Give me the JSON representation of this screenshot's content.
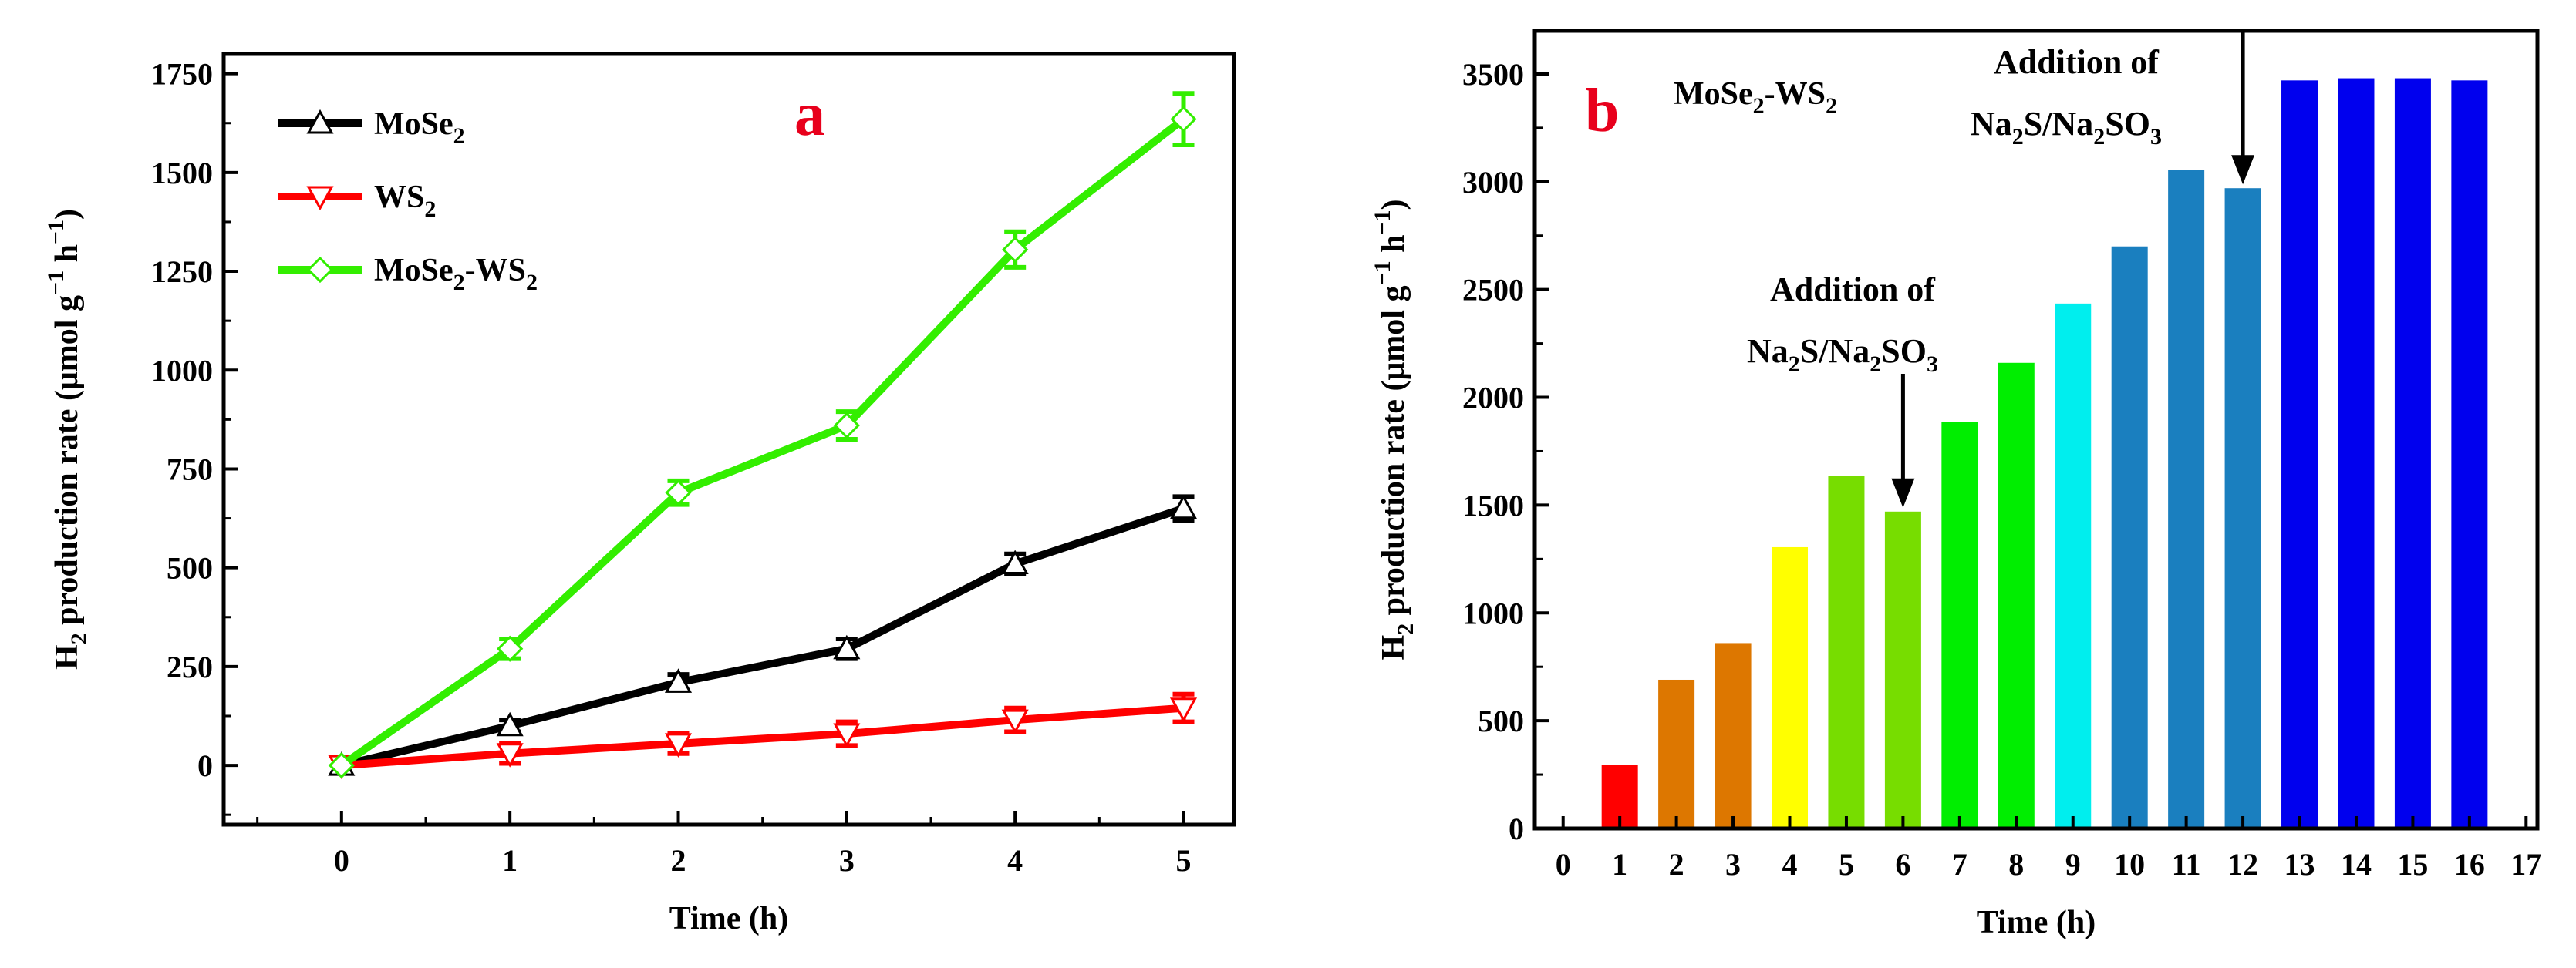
{
  "chart_data": [
    {
      "panel": "a",
      "type": "line",
      "panel_label": "a",
      "panel_label_color": "#e8001c",
      "xlabel": "Time (h)",
      "ylabel_parts": [
        "H",
        "2",
        " production rate (μmol g",
        "−1",
        " h",
        "−1",
        ")"
      ],
      "x": [
        0,
        1,
        2,
        3,
        4,
        5
      ],
      "xlim": [
        -0.7,
        5.3
      ],
      "ylim": [
        -150,
        1800
      ],
      "xticks": [
        "0",
        "1",
        "2",
        "3",
        "4",
        "5"
      ],
      "yticks": [
        "0",
        "250",
        "500",
        "750",
        "1000",
        "1250",
        "1500",
        "1750"
      ],
      "ytick_values": [
        0,
        250,
        500,
        750,
        1000,
        1250,
        1500,
        1750
      ],
      "series": [
        {
          "name": "MoSe2",
          "label_parts": [
            "MoSe",
            "2"
          ],
          "color": "#000000",
          "marker": "triangle-up",
          "values": [
            0,
            100,
            210,
            295,
            510,
            650
          ],
          "error": [
            0,
            15,
            20,
            25,
            25,
            30
          ]
        },
        {
          "name": "WS2",
          "label_parts": [
            "WS",
            "2"
          ],
          "color": "#ff0000",
          "marker": "triangle-down",
          "values": [
            0,
            30,
            55,
            80,
            115,
            145
          ],
          "error": [
            0,
            25,
            25,
            30,
            30,
            35
          ]
        },
        {
          "name": "MoSe2-WS2",
          "label_parts": [
            "MoSe",
            "2",
            "-WS",
            "2"
          ],
          "color": "#33ee00",
          "marker": "diamond",
          "values": [
            0,
            295,
            690,
            860,
            1305,
            1635
          ],
          "error": [
            0,
            25,
            30,
            35,
            45,
            65
          ]
        }
      ]
    },
    {
      "panel": "b",
      "type": "bar",
      "panel_label": "b",
      "panel_label_color": "#e8001c",
      "title_parts": [
        "MoSe",
        "2",
        "-WS",
        "2"
      ],
      "xlabel": "Time (h)",
      "ylabel_parts": [
        "H",
        "2",
        " production rate (μmol g",
        "−1",
        " h",
        "−1",
        ")"
      ],
      "xlim": [
        -0.5,
        17.2
      ],
      "ylim": [
        0,
        3700
      ],
      "xticks": [
        "0",
        "1",
        "2",
        "3",
        "4",
        "5",
        "6",
        "7",
        "8",
        "9",
        "10",
        "11",
        "12",
        "13",
        "14",
        "15",
        "16",
        "17"
      ],
      "yticks": [
        "0",
        "500",
        "1000",
        "1500",
        "2000",
        "2500",
        "3000",
        "3500"
      ],
      "ytick_values": [
        0,
        500,
        1000,
        1500,
        2000,
        2500,
        3000,
        3500
      ],
      "categories": [
        1,
        2,
        3,
        4,
        5,
        6,
        7,
        8,
        9,
        10,
        11,
        12,
        13,
        14,
        15,
        16
      ],
      "values": [
        295,
        690,
        860,
        1305,
        1635,
        1470,
        1885,
        2160,
        2435,
        2700,
        3055,
        2970,
        3470,
        3480,
        3480,
        3470
      ],
      "bar_colors": [
        "#ff0000",
        "#dd7700",
        "#dd7700",
        "#ffff00",
        "#77dd00",
        "#77dd00",
        "#00ee00",
        "#00ee00",
        "#00eeee",
        "#1a7fbf",
        "#1a7fbf",
        "#1a7fbf",
        "#0000ee",
        "#0000ee",
        "#0000ee",
        "#0000ee"
      ],
      "annotations": [
        {
          "at_x": 6,
          "at_value": 1470,
          "line1": "Addition of",
          "line2_parts": [
            "Na",
            "2",
            "S/Na",
            "2",
            "SO",
            "3"
          ]
        },
        {
          "at_x": 12,
          "at_value": 2970,
          "line1": "Addition of",
          "line2_parts": [
            "Na",
            "2",
            "S/Na",
            "2",
            "SO",
            "3"
          ]
        }
      ]
    }
  ]
}
